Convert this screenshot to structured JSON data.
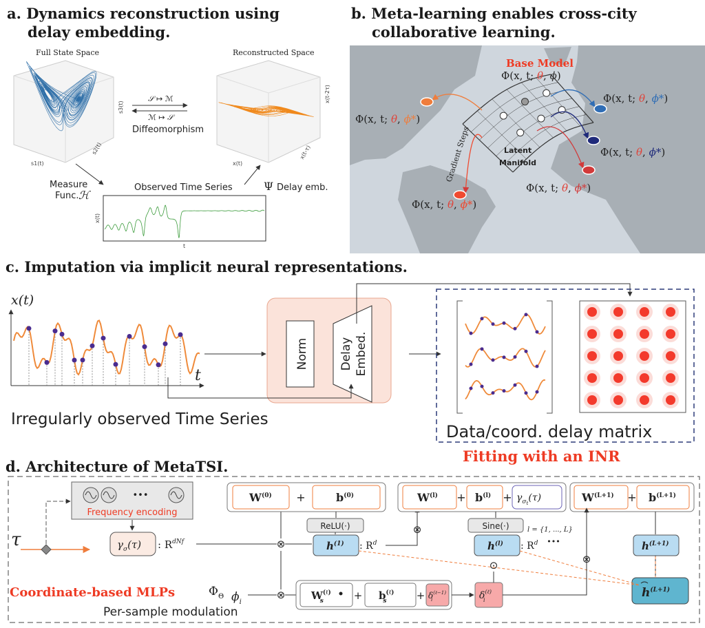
{
  "panel_a": {
    "title": [
      "a. Dynamics reconstruction using",
      "delay embedding."
    ],
    "full_state_space": "Full State Space",
    "reconstructed_space": "Reconstructed Space",
    "map_forward": "𝒮 ↦ ℳ",
    "map_backward": "ℳ ↦ 𝒮",
    "diffeomorphism": "Diffeomorphism",
    "measure_func": [
      "Measure",
      "Func."
    ],
    "measure_symbol": "ℋ",
    "observed_time_series": "Observed Time Series",
    "delay_symbol": "Ψ",
    "delay_emb": "Delay emb.",
    "full_axes": [
      "s1(t)",
      "s2(t)",
      "s3(t)"
    ],
    "reconstructed_axes": [
      "x(t)",
      "x(t-τ)",
      "x(t-2τ)"
    ],
    "series_axes": [
      "x(t)",
      "t"
    ]
  },
  "panel_b": {
    "title": [
      "b. Meta-learning enables cross-city",
      "collaborative learning."
    ],
    "base_model": "Base Model",
    "base_formula": [
      "Φ(x, t; ",
      "θ",
      ", ",
      "ϕ",
      ")"
    ],
    "city_formula": [
      "Φ(x, t; ",
      "θ",
      ", ",
      "ϕ*",
      ")"
    ],
    "gradient_steps": "Gradient Steps",
    "latent_manifold": [
      "Latent",
      "Manifold"
    ]
  },
  "panel_c": {
    "title": "c. Imputation via implicit neural representations.",
    "y_label": "x(t)",
    "x_label": "t",
    "caption_left": "Irregularly observed Time Series",
    "norm": "Norm",
    "delay_embed": [
      "Delay",
      "Embed."
    ],
    "caption_right": "Data/coord. delay matrix",
    "fitting": "Fitting with an INR"
  },
  "panel_d": {
    "title": "d. Architecture of MetaTSI.",
    "input": "τ",
    "dots": "•••",
    "frequency_encoding": "Frequency encoding",
    "encoding": {
      "gamma": "γ",
      "sub": "σ",
      "arg": "(τ)",
      "space": ": R",
      "dim": "dNf"
    },
    "plus": "+",
    "times": "⊗",
    "odot": "⊙",
    "layer_0": {
      "W": "W",
      "b": "b",
      "sup": "(0)",
      "activation": "ReLU(·)"
    },
    "layer_l": {
      "W": "W",
      "b": "b",
      "sup": "(l)",
      "activation": "Sine(·)",
      "gamma": "γ",
      "sub": "σ",
      "sub2": "t",
      "arg": "(τ)"
    },
    "layer_last": {
      "W": "W",
      "b": "b",
      "sup": "(L+1)"
    },
    "hidden": {
      "h": "h",
      "sup_1": "(1)",
      "sup_l": "(l)",
      "sup_last": "(L+1)",
      "space": ": R",
      "dim": "d"
    },
    "layer_range": "l = {1, ..., L}",
    "mlp_label": "Coordinate-based MLPs",
    "phi_theta": {
      "main": "Φ",
      "sub": "Θ"
    },
    "phi_i": {
      "main": "ϕ",
      "sub": "i"
    },
    "modulation": {
      "W": "W",
      "W_sub": "s",
      "b": "b",
      "b_sub": "s",
      "sup": "(ℓ)",
      "delta": "δ",
      "delta_sub": "i",
      "delta_sup": "(ℓ−1)"
    },
    "shift": {
      "delta": "δ",
      "sub": "i",
      "sup": "(ℓ)"
    },
    "per_sample": "Per-sample modulation"
  }
}
